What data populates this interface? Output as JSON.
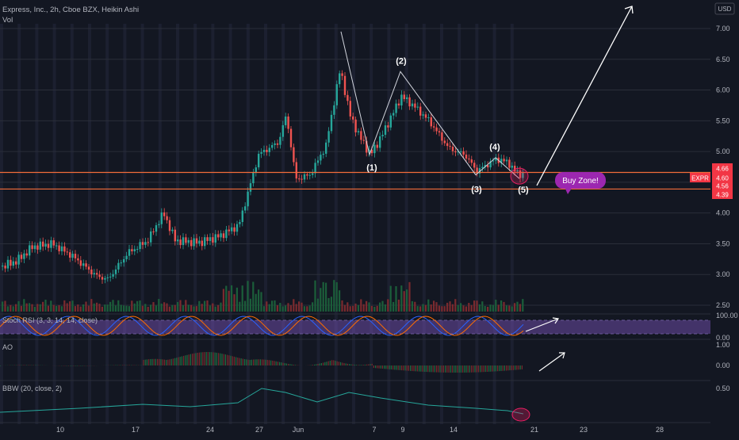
{
  "header": {
    "title": "Express, Inc., 2h, Cboe BZX, Heikin Ashi",
    "vol_label": "Vol"
  },
  "currency_badge": "USD",
  "colors": {
    "background": "#131722",
    "up": "#26a69a",
    "down": "#ef5350",
    "level_line": "#f26b3a",
    "price_badge": "#f23645",
    "stoch_k": "#2962ff",
    "stoch_d": "#ff6d00",
    "stoch_band": "#7e57c2",
    "bbw": "#26a69a",
    "annotation": "#ffffff",
    "callout": "#9c27b0"
  },
  "chart_data": [
    {
      "type": "candlestick",
      "name": "price",
      "x_ticks": [
        "10",
        "17",
        "24",
        "27",
        "Jun",
        "7",
        "9",
        "14",
        "21",
        "23",
        "28"
      ],
      "y_ticks": [
        2.5,
        3.0,
        3.5,
        4.0,
        4.5,
        5.0,
        5.5,
        6.0,
        6.5,
        7.0
      ],
      "ylim": [
        2.5,
        7.0
      ],
      "price_badges": [
        {
          "label": "4.66",
          "value": 4.66
        },
        {
          "label": "EXPR",
          "value": 4.6
        },
        {
          "label": "4.60",
          "value": 4.6
        },
        {
          "label": "4.56",
          "value": 4.56
        },
        {
          "label": "4.39",
          "value": 4.39
        }
      ],
      "horizontal_levels": [
        4.66,
        4.39
      ],
      "wave_labels": [
        {
          "label": "(1)",
          "value": 4.95
        },
        {
          "label": "(2)",
          "value": 6.3
        },
        {
          "label": "(3)",
          "value": 4.62
        },
        {
          "label": "(4)",
          "value": 4.9
        },
        {
          "label": "(5)",
          "value": 4.56
        }
      ],
      "callout": "Buy Zone!",
      "grid": true
    },
    {
      "type": "line",
      "name": "Stoch RSI",
      "label": "Stoch RSI (3, 3, 14, 14, close)",
      "y_ticks": [
        100.0,
        0.0
      ],
      "ylim": [
        0,
        100
      ]
    },
    {
      "type": "histogram",
      "name": "AO",
      "label": "AO",
      "y_ticks": [
        1.0,
        0.0
      ]
    },
    {
      "type": "line",
      "name": "BBW",
      "label": "BBW (20, close, 2)",
      "y_ticks": [
        0.5
      ]
    }
  ]
}
